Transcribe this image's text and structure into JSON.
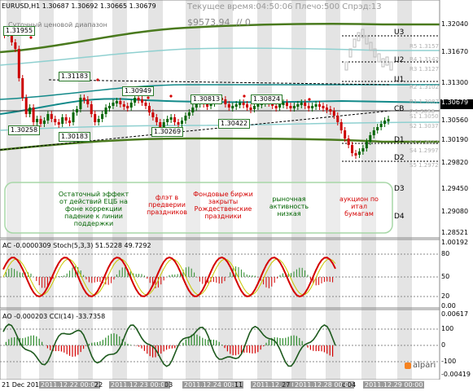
{
  "window": {
    "title": "EURUSD,H1  1.30687 1.30692 1.30665 1.30679",
    "server_time": "Текущее время:04:50:06 Плечо:500 Спрэд:13",
    "balance": "$9573.94",
    "balance_extra": "// 0",
    "indicator_name": "Суточный ценовой диапазон"
  },
  "price_axis": {
    "labels": [
      "1.32040",
      "1.31670",
      "1.31300",
      "1.30679",
      "1.30560",
      "1.30190",
      "1.29820",
      "1.29450",
      "1.29080",
      "1.28521"
    ],
    "current": "1.30679"
  },
  "levels": [
    {
      "name": "U3",
      "label": "U3"
    },
    {
      "name": "U2",
      "label": "U2"
    },
    {
      "name": "U1",
      "label": "U1"
    },
    {
      "name": "CB",
      "label": "CB"
    },
    {
      "name": "D1",
      "label": "D1"
    },
    {
      "name": "D2",
      "label": "D2"
    },
    {
      "name": "D3",
      "label": "D3"
    },
    {
      "name": "D4",
      "label": "D4"
    }
  ],
  "pivots": [
    "R5 1.3157",
    "R4 1.3142",
    "R3 1.3127",
    "R2 1.3102",
    "R1 1.3087",
    "P 1.3056",
    "S1 1.3050",
    "S2 1.3037",
    "S3 1.3012",
    "S4 1.2997",
    "S5 1.2972"
  ],
  "price_boxes": [
    {
      "id": "p1",
      "text": "1.31955"
    },
    {
      "id": "p2",
      "text": "1.31183"
    },
    {
      "id": "p3",
      "text": "1.30949"
    },
    {
      "id": "p4",
      "text": "1.30813"
    },
    {
      "id": "p5",
      "text": "1.30824"
    },
    {
      "id": "p6",
      "text": "1.30258"
    },
    {
      "id": "p7",
      "text": "1.30183"
    },
    {
      "id": "p8",
      "text": "1.30269"
    },
    {
      "id": "p9",
      "text": "1.30422"
    }
  ],
  "annotations": [
    {
      "id": "a1",
      "text": "Остаточный эффект от действий ЕЦБ на фоне коррекции падение к линии поддержки",
      "color": "green"
    },
    {
      "id": "a2",
      "text": "флэт в предверии праздников",
      "color": "red"
    },
    {
      "id": "a3",
      "text": "Фондовые биржи закрыты Рождественские праздники",
      "color": "red"
    },
    {
      "id": "a4",
      "text": "рыночная активность низкая",
      "color": "green"
    },
    {
      "id": "a5",
      "text": "аукцион по итал бумагам",
      "color": "red"
    }
  ],
  "ac_panel": {
    "title": "AC -0.0000309  Stoch(5,3,3) 51.5228 49.7292",
    "axis": [
      "1.00192",
      "80",
      "50",
      "20",
      "0.00"
    ]
  },
  "cci_panel": {
    "title": "AO -0.000203  CCI(14) -33.7358",
    "axis": [
      "0.00617",
      "100",
      "0",
      "-100",
      "-0.00419"
    ]
  },
  "time_axis": {
    "labels": [
      "21 Dec 2011",
      "2011.12.22 00:00",
      "22",
      "2011.12.23 00:00",
      "03",
      "2011.12.24 00:00",
      "11",
      "2011.12.27 00:00",
      "27",
      "2011.12.28 00:00",
      "c 04",
      "2011.12.29 00:00"
    ]
  },
  "brand": {
    "name": "alpari"
  },
  "colors": {
    "candle_up": "#006400",
    "candle_down": "#cc0000",
    "ma_green": "#4a7a1e",
    "ma_teal": "#138a8a",
    "red_line": "#d40000",
    "grid_band": "#d9d9d9"
  }
}
